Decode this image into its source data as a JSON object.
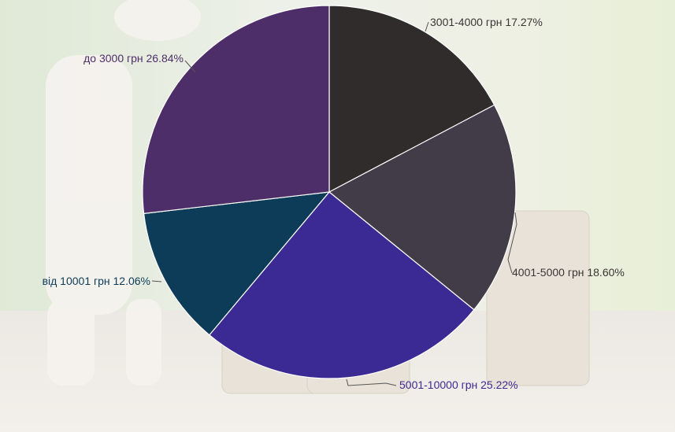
{
  "chart_data": {
    "type": "pie",
    "title": "",
    "slices": [
      {
        "label": "3001-4000 грн 17.27%",
        "value": 17.27,
        "color": "#312c2c",
        "label_color": "#3a3535"
      },
      {
        "label": "4001-5000 грн 18.60%",
        "value": 18.6,
        "color": "#423b48",
        "label_color": "#3a3535"
      },
      {
        "label": "5001-10000 грн 25.22%",
        "value": 25.22,
        "color": "#3c2a94",
        "label_color": "#3c2a94"
      },
      {
        "label": "від 10001 грн 12.06%",
        "value": 12.06,
        "color": "#0d3c58",
        "label_color": "#0d3c58"
      },
      {
        "label": "до 3000 грн 26.84%",
        "value": 26.84,
        "color": "#4e2e68",
        "label_color": "#4e2e68"
      }
    ],
    "start_angle": "top (12 o'clock)",
    "direction": "clockwise",
    "legend": "none (slice labels outside)"
  }
}
